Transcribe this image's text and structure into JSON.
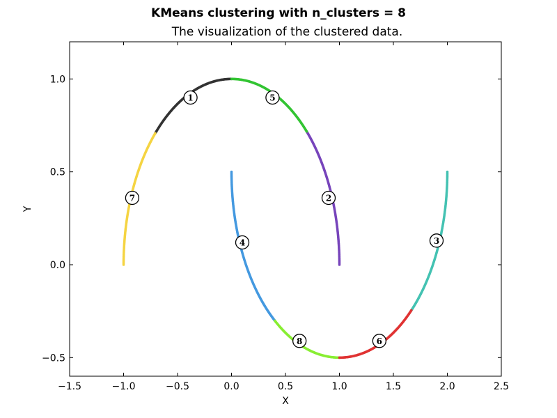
{
  "chart_data": {
    "type": "scatter",
    "title": "KMeans clustering with n_clusters = 8",
    "subtitle": "The visualization of the clustered data.",
    "xlabel": "X",
    "ylabel": "Y",
    "xlim": [
      -1.5,
      2.5
    ],
    "ylim": [
      -0.6,
      1.2
    ],
    "xticks": [
      "−1.5",
      "−1.0",
      "−0.5",
      "0.0",
      "0.5",
      "1.0",
      "1.5",
      "2.0",
      "2.5"
    ],
    "yticks": [
      "−0.5",
      "0.0",
      "0.5",
      "1.0"
    ],
    "grid": false,
    "clusters": [
      {
        "label": "1",
        "color": "#333333",
        "moon": "upper",
        "t_range": [
          1.5708,
          2.3562
        ],
        "center": [
          -0.38,
          0.9
        ]
      },
      {
        "label": "2",
        "color": "#7744bb",
        "moon": "upper",
        "t_range": [
          0.0,
          0.8
        ],
        "center": [
          0.9,
          0.36
        ]
      },
      {
        "label": "3",
        "color": "#4499e0",
        "moon": "lower",
        "t_range": [
          0.0,
          0.93
        ],
        "center": [
          1.9,
          0.13
        ]
      },
      {
        "label": "4",
        "color": "#44c2b2",
        "moon": "lower",
        "t_range": [
          2.3,
          3.1416
        ],
        "center": [
          0.1,
          0.12
        ]
      },
      {
        "label": "5",
        "color": "#33c433",
        "moon": "upper",
        "t_range": [
          0.8,
          1.5708
        ],
        "center": [
          0.38,
          0.9
        ]
      },
      {
        "label": "6",
        "color": "#88ee33",
        "moon": "lower",
        "t_range": [
          0.93,
          1.5708
        ],
        "center": [
          1.37,
          -0.41
        ]
      },
      {
        "label": "7",
        "color": "#f5d442",
        "moon": "upper",
        "t_range": [
          2.3562,
          3.1416
        ],
        "center": [
          -0.92,
          0.36
        ]
      },
      {
        "label": "8",
        "color": "#e03333",
        "moon": "lower",
        "t_range": [
          1.5708,
          2.3
        ],
        "center": [
          0.63,
          -0.41
        ]
      }
    ]
  }
}
